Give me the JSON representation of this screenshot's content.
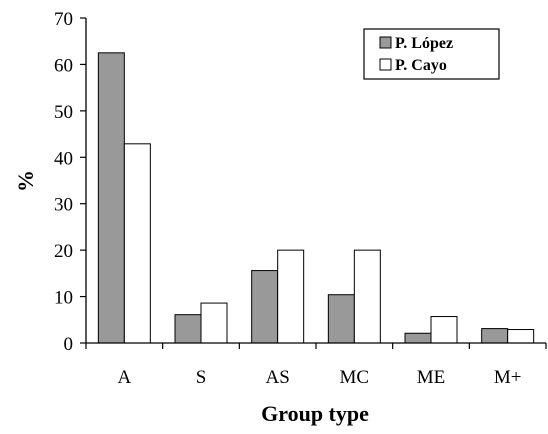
{
  "chart_data": {
    "type": "bar",
    "title": "",
    "xlabel": "Group type",
    "ylabel": "%",
    "ylim": [
      0,
      70
    ],
    "yticks": [
      "0",
      "10",
      "20",
      "30",
      "40",
      "50",
      "60",
      "70"
    ],
    "categories": [
      "A",
      "S",
      "AS",
      "MC",
      "ME",
      "M+"
    ],
    "legend_position": "top-right",
    "grid": false,
    "series": [
      {
        "name": "P. López",
        "color": "#999999",
        "values": [
          62.5,
          6.1,
          15.6,
          10.4,
          2.1,
          3.1
        ]
      },
      {
        "name": "P. Cayo",
        "color": "#ffffff",
        "values": [
          42.9,
          8.6,
          20.0,
          20.0,
          5.7,
          2.9
        ]
      }
    ]
  }
}
